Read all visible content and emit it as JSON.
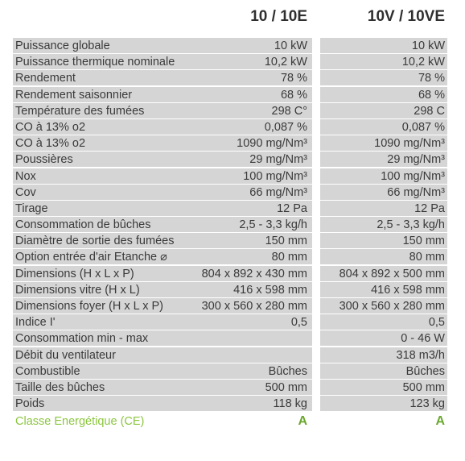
{
  "header": {
    "col1": "10 / 10E",
    "col2": "10V / 10VE"
  },
  "rows": [
    {
      "label": "Puissance globale",
      "v1": "10 kW",
      "v2": "10 kW"
    },
    {
      "label": "Puissance thermique nominale",
      "v1": "10,2 kW",
      "v2": "10,2 kW"
    },
    {
      "label": "Rendement",
      "v1": "78 %",
      "v2": "78 %"
    },
    {
      "label": "Rendement saisonnier",
      "v1": "68 %",
      "v2": "68 %"
    },
    {
      "label": "Température des fumées",
      "v1": "298 C°",
      "v2": "298 C"
    },
    {
      "label": "CO à 13% o2",
      "v1": "0,087 %",
      "v2": "0,087 %"
    },
    {
      "label": "CO à 13% o2",
      "v1": "1090 mg/Nm³",
      "v2": "1090 mg/Nm³"
    },
    {
      "label": "Poussières",
      "v1": "29 mg/Nm³",
      "v2": "29 mg/Nm³"
    },
    {
      "label": "Nox",
      "v1": "100 mg/Nm³",
      "v2": "100 mg/Nm³"
    },
    {
      "label": "Cov",
      "v1": "66 mg/Nm³",
      "v2": "66 mg/Nm³"
    },
    {
      "label": "Tirage",
      "v1": "12 Pa",
      "v2": "12 Pa"
    },
    {
      "label": "Consommation de bûches",
      "v1": "2,5 - 3,3 kg/h",
      "v2": "2,5 - 3,3 kg/h"
    },
    {
      "label": "Diamètre de sortie des fumées",
      "v1": "150 mm",
      "v2": "150 mm"
    },
    {
      "label": "Option entrée d'air Etanche ⌀",
      "v1": "80 mm",
      "v2": "80 mm"
    },
    {
      "label": "Dimensions (H x L x P)",
      "v1": "804 x 892 x 430 mm",
      "v2": "804 x 892 x 500 mm"
    },
    {
      "label": "Dimensions vitre (H x L)",
      "v1": "416 x 598 mm",
      "v2": "416 x 598 mm"
    },
    {
      "label": "Dimensions foyer (H x L x P)",
      "v1": "300 x 560 x 280 mm",
      "v2": "300 x 560 x 280 mm"
    },
    {
      "label": "Indice I'",
      "v1": "0,5",
      "v2": "0,5"
    },
    {
      "label": "Consommation min - max",
      "v1": "",
      "v2": "0 - 46 W"
    },
    {
      "label": "Débit du ventilateur",
      "v1": "",
      "v2": "318 m3/h"
    },
    {
      "label": "Combustible",
      "v1": "Bûches",
      "v2": "Bûches"
    },
    {
      "label": "Taille des bûches",
      "v1": "500 mm",
      "v2": "500 mm"
    },
    {
      "label": "Poids",
      "v1": "118 kg",
      "v2": "123 kg"
    }
  ],
  "energy": {
    "label": "Classe Energétique (CE)",
    "v1": "A",
    "v2": "A"
  },
  "colors": {
    "shade": "#d5d5d5",
    "energy_label": "#8cc63f",
    "energy_value": "#6aa82e"
  }
}
